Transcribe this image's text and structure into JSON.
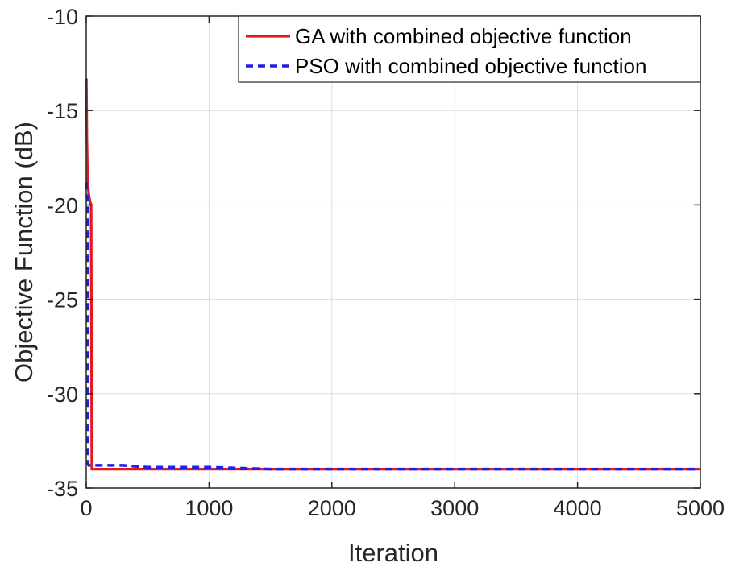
{
  "chart_data": {
    "type": "line",
    "title": "",
    "xlabel": "Iteration",
    "ylabel": "Objective Function (dB)",
    "xlim": [
      0,
      5000
    ],
    "ylim": [
      -35,
      -10
    ],
    "x_ticks": [
      0,
      1000,
      2000,
      3000,
      4000,
      5000
    ],
    "x_tick_labels": [
      "0",
      "1000",
      "2000",
      "3000",
      "4000",
      "5000"
    ],
    "y_ticks": [
      -10,
      -15,
      -20,
      -25,
      -30,
      -35
    ],
    "y_tick_labels": [
      "-10",
      "-15",
      "-20",
      "-25",
      "-30",
      "-35"
    ],
    "grid": true,
    "legend_position": "top-right",
    "series": [
      {
        "name": "GA with combined objective function",
        "color": "#e31a1c",
        "style": "solid",
        "x": [
          1,
          5,
          10,
          15,
          20,
          30,
          40,
          45,
          50,
          60,
          100,
          200,
          500,
          1000,
          2000,
          3000,
          4000,
          5000
        ],
        "y": [
          -13.3,
          -16.5,
          -18.2,
          -19.0,
          -19.4,
          -19.8,
          -20.0,
          -34.0,
          -34.0,
          -34.0,
          -34.0,
          -34.0,
          -34.0,
          -34.0,
          -34.0,
          -34.0,
          -34.0,
          -34.0
        ]
      },
      {
        "name": "PSO with combined objective function",
        "color": "#1f1fe6",
        "style": "dashed",
        "x": [
          1,
          5,
          10,
          15,
          20,
          25,
          30,
          50,
          100,
          200,
          300,
          500,
          800,
          1000,
          1500,
          2000,
          3000,
          4000,
          5000
        ],
        "y": [
          -18.8,
          -19.2,
          -20.0,
          -33.7,
          -33.8,
          -33.8,
          -33.8,
          -33.8,
          -33.8,
          -33.8,
          -33.8,
          -33.9,
          -33.9,
          -33.9,
          -34.0,
          -34.0,
          -34.0,
          -34.0,
          -34.0
        ]
      }
    ]
  }
}
